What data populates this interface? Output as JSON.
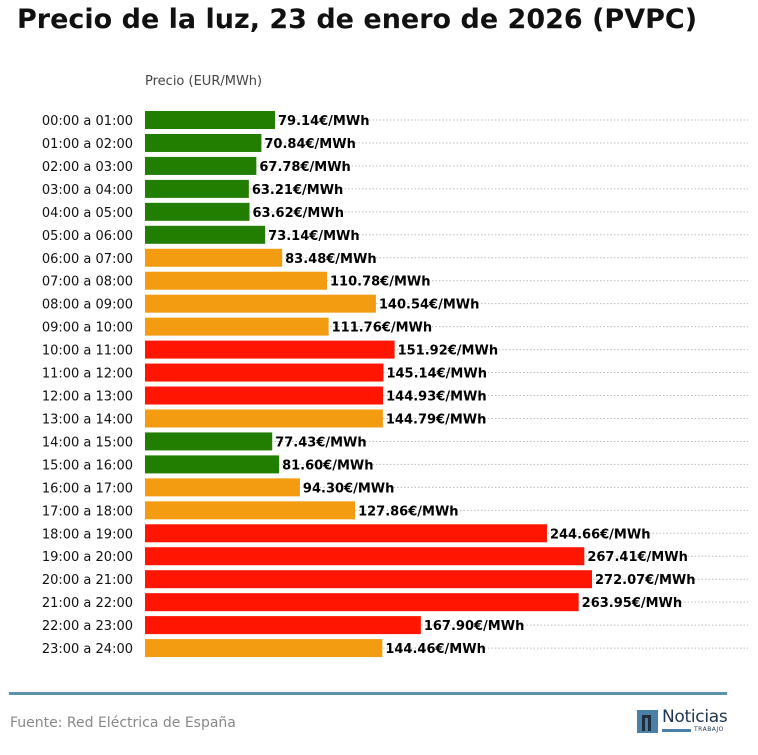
{
  "chart_data": {
    "type": "bar",
    "orientation": "horizontal",
    "title": "Precio de la luz, 23 de enero de 2026 (PVPC)",
    "xlabel": "Precio (EUR/MWh)",
    "ylabel": "",
    "value_suffix": "€/MWh",
    "xlim": [
      0,
      272.07
    ],
    "grid": "dotted horizontal guide lines",
    "colors": {
      "low": "#217e00",
      "mid": "#f39c12",
      "high": "#ff1500"
    },
    "categories": [
      "00:00 a 01:00",
      "01:00 a 02:00",
      "02:00 a 03:00",
      "03:00 a 04:00",
      "04:00 a 05:00",
      "05:00 a 06:00",
      "06:00 a 07:00",
      "07:00 a 08:00",
      "08:00 a 09:00",
      "09:00 a 10:00",
      "10:00 a 11:00",
      "11:00 a 12:00",
      "12:00 a 13:00",
      "13:00 a 14:00",
      "14:00 a 15:00",
      "15:00 a 16:00",
      "16:00 a 17:00",
      "17:00 a 18:00",
      "18:00 a 19:00",
      "19:00 a 20:00",
      "20:00 a 21:00",
      "21:00 a 22:00",
      "22:00 a 23:00",
      "23:00 a 24:00"
    ],
    "values": [
      79.14,
      70.84,
      67.78,
      63.21,
      63.62,
      73.14,
      83.48,
      110.78,
      140.54,
      111.76,
      151.92,
      145.14,
      144.93,
      144.79,
      77.43,
      81.6,
      94.3,
      127.86,
      244.66,
      267.41,
      272.07,
      263.95,
      167.9,
      144.46
    ],
    "levels": [
      "low",
      "low",
      "low",
      "low",
      "low",
      "low",
      "mid",
      "mid",
      "mid",
      "mid",
      "high",
      "high",
      "high",
      "mid",
      "low",
      "low",
      "mid",
      "mid",
      "high",
      "high",
      "high",
      "high",
      "high",
      "mid"
    ]
  },
  "footer": {
    "source": "Fuente: Red Eléctrica de España"
  },
  "logo": {
    "word": "Noticias",
    "sub": "TRABAJO"
  }
}
